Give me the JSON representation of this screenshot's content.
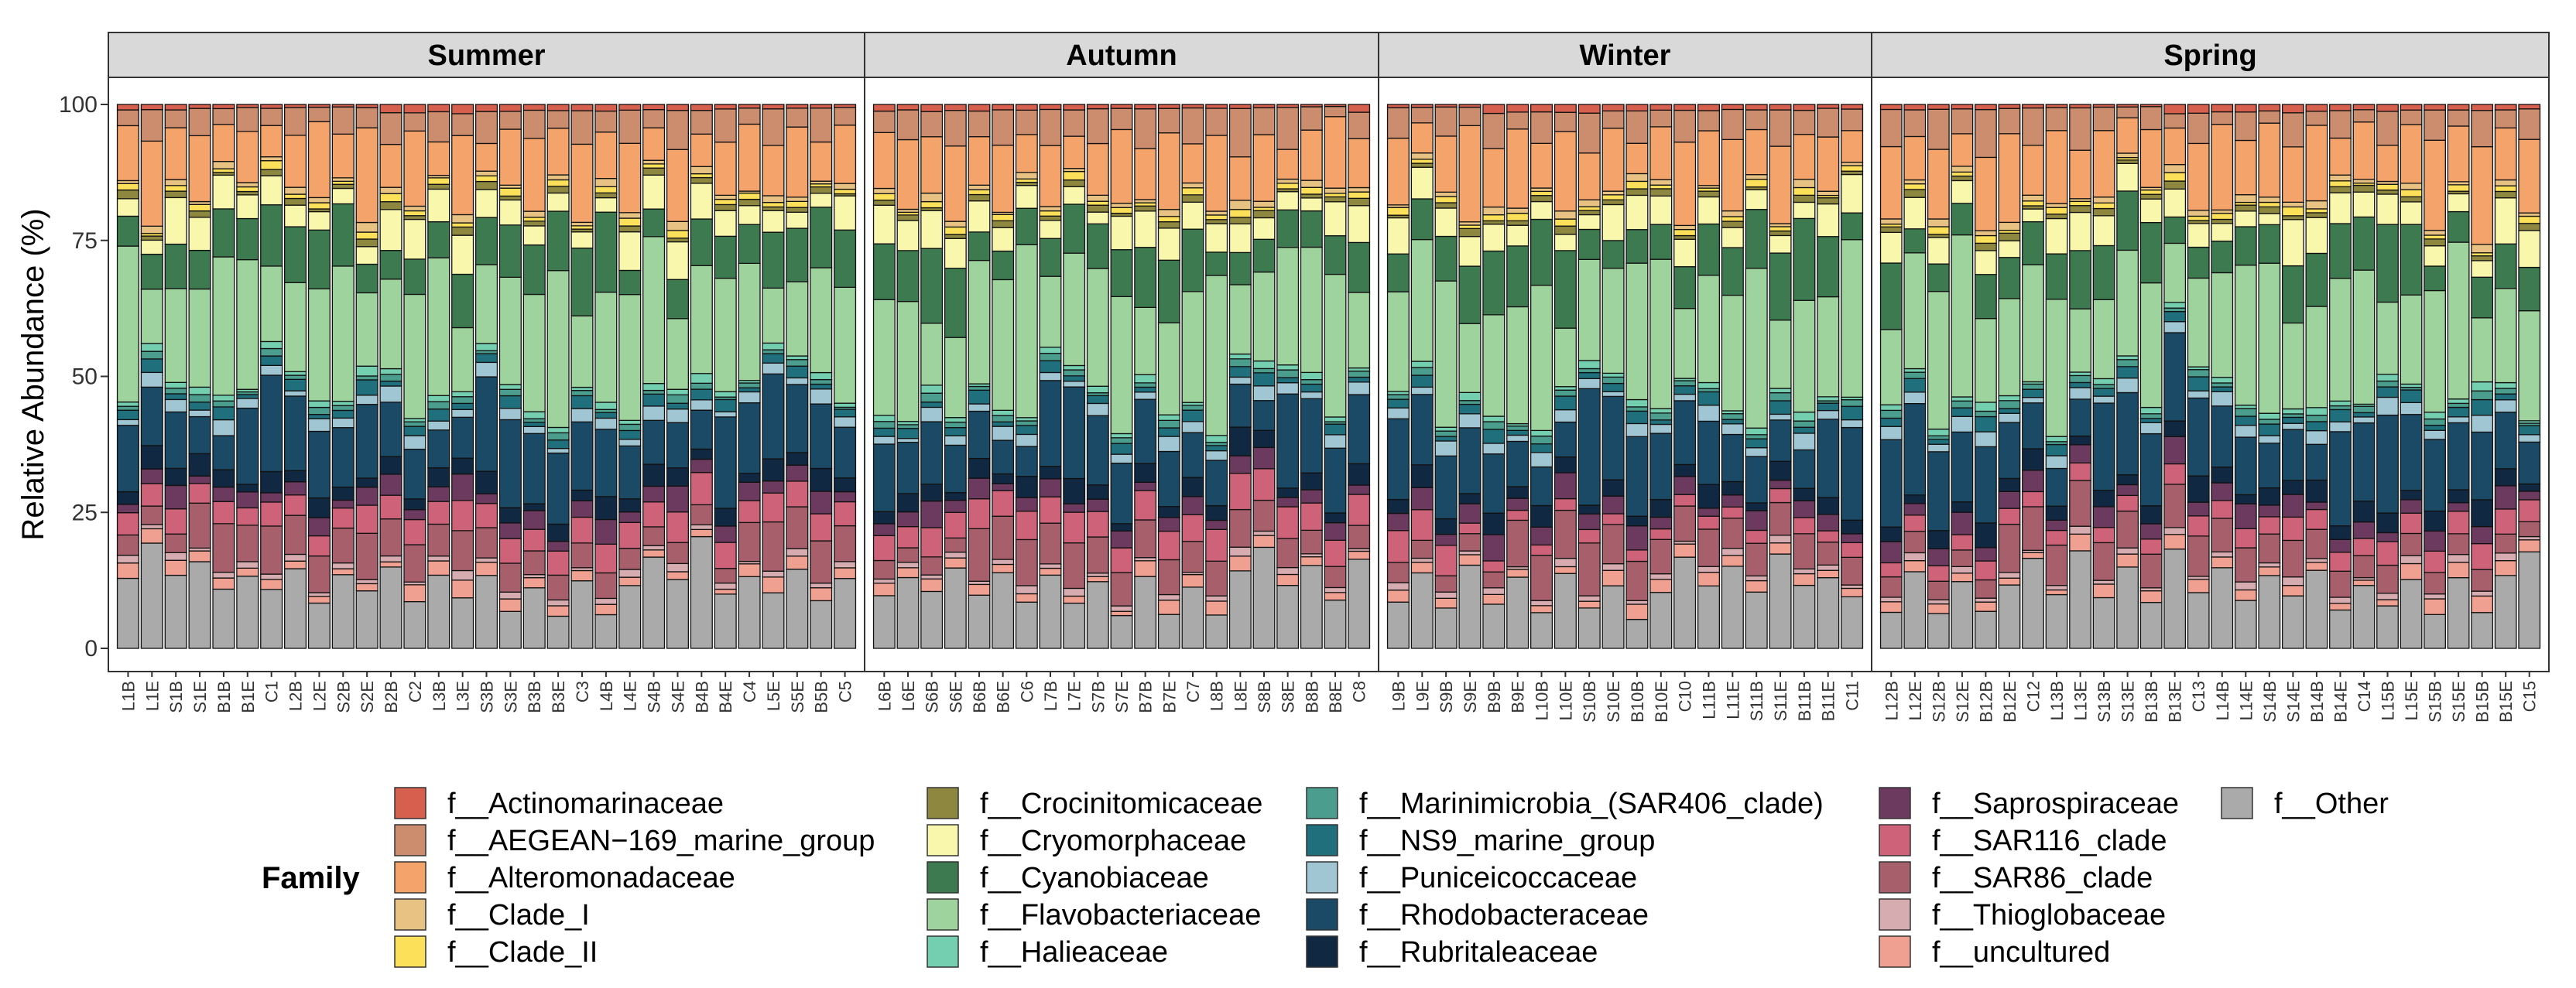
{
  "chart_data": {
    "type": "bar",
    "stacked": true,
    "ylabel": "Relative Abundance (%)",
    "ylim": [
      0,
      100
    ],
    "yticks": [
      0,
      25,
      50,
      75,
      100
    ],
    "legend": {
      "title": "Family",
      "position": "bottom",
      "entries": [
        {
          "name": "f__Actinomarinaceae",
          "color": "#d6604d"
        },
        {
          "name": "f__AEGEAN−169_marine_group",
          "color": "#cc8c6e"
        },
        {
          "name": "f__Alteromonadaceae",
          "color": "#f4a46a"
        },
        {
          "name": "f__Clade_I",
          "color": "#e8c283"
        },
        {
          "name": "f__Clade_II",
          "color": "#fde05a"
        },
        {
          "name": "f__Crocinitomicaceae",
          "color": "#8e8740"
        },
        {
          "name": "f__Cryomorphaceae",
          "color": "#f8f7ab"
        },
        {
          "name": "f__Cyanobiaceae",
          "color": "#3d7a50"
        },
        {
          "name": "f__Flavobacteriaceae",
          "color": "#9ed39e"
        },
        {
          "name": "f__Halieaceae",
          "color": "#74cfb0"
        },
        {
          "name": "f__Marinimicrobia_(SAR406_clade)",
          "color": "#4b9e8e"
        },
        {
          "name": "f__NS9_marine_group",
          "color": "#1f6f7c"
        },
        {
          "name": "f__Puniceicoccaceae",
          "color": "#a0c6d4"
        },
        {
          "name": "f__Rhodobacteraceae",
          "color": "#1b4a66"
        },
        {
          "name": "f__Rubritaleaceae",
          "color": "#102842"
        },
        {
          "name": "f__Saprospiraceae",
          "color": "#6b3a5e"
        },
        {
          "name": "f__SAR116_clade",
          "color": "#cd6278"
        },
        {
          "name": "f__SAR86_clade",
          "color": "#a85f6c"
        },
        {
          "name": "f__Thioglobaceae",
          "color": "#d6acb1"
        },
        {
          "name": "f__uncultured",
          "color": "#f0a090"
        },
        {
          "name": "f__Other",
          "color": "#aaaaaa"
        }
      ]
    },
    "panels": [
      {
        "title": "Summer",
        "categories": [
          "L1B",
          "L1E",
          "S1B",
          "S1E",
          "B1B",
          "B1E",
          "C1",
          "L2B",
          "L2E",
          "S2B",
          "S2E",
          "B2B",
          "C2",
          "L3B",
          "L3E",
          "S3B",
          "S3E",
          "B3B",
          "B3E",
          "C3",
          "L4B",
          "L4E",
          "S4B",
          "S4E",
          "B4B",
          "B4E",
          "C4",
          "L5E",
          "S5E",
          "B5B",
          "C5"
        ]
      },
      {
        "title": "Autumn",
        "categories": [
          "L6B",
          "L6E",
          "S6B",
          "S6E",
          "B6B",
          "B6E",
          "C6",
          "L7B",
          "L7E",
          "S7B",
          "S7E",
          "B7B",
          "B7E",
          "C7",
          "L8B",
          "L8E",
          "S8B",
          "S8E",
          "B8B",
          "B8E",
          "C8"
        ]
      },
      {
        "title": "Winter",
        "categories": [
          "L9B",
          "L9E",
          "S9B",
          "S9E",
          "B9B",
          "B9E",
          "L10B",
          "L10E",
          "S10B",
          "S10E",
          "B10B",
          "B10E",
          "C10",
          "L11B",
          "L11E",
          "S11B",
          "S11E",
          "B11B",
          "B11E",
          "C11"
        ]
      },
      {
        "title": "Spring",
        "categories": [
          "L12B",
          "L12E",
          "S12B",
          "S12E",
          "B12B",
          "B12E",
          "C12",
          "L13B",
          "L13E",
          "S13B",
          "S13E",
          "B13B",
          "B13E",
          "C13",
          "L14B",
          "L14E",
          "S14B",
          "S14E",
          "B14B",
          "B14E",
          "C14",
          "L15B",
          "L15E",
          "S15B",
          "S15E",
          "B15B",
          "B15E",
          "C15"
        ]
      }
    ],
    "typical_composition_percent": {
      "f__Other": 12,
      "f__uncultured": 2,
      "f__Thioglobaceae": 1,
      "f__SAR86_clade": 6,
      "f__SAR116_clade": 4,
      "f__Saprospiraceae": 3,
      "f__Rubritaleaceae": 3,
      "f__Rhodobacteraceae": 12,
      "f__Puniceicoccaceae": 2,
      "f__NS9_marine_group": 2,
      "f__Marinimicrobia_(SAR406_clade)": 1,
      "f__Halieaceae": 1,
      "f__Flavobacteriaceae": 21,
      "f__Cyanobiaceae": 9,
      "f__Cryomorphaceae": 5,
      "f__Crocinitomicaceae": 1,
      "f__Clade_II": 1,
      "f__Clade_I": 1,
      "f__Alteromonadaceae": 11,
      "f__AEGEAN−169_marine_group": 5,
      "f__Actinomarinaceae": 1
    }
  }
}
